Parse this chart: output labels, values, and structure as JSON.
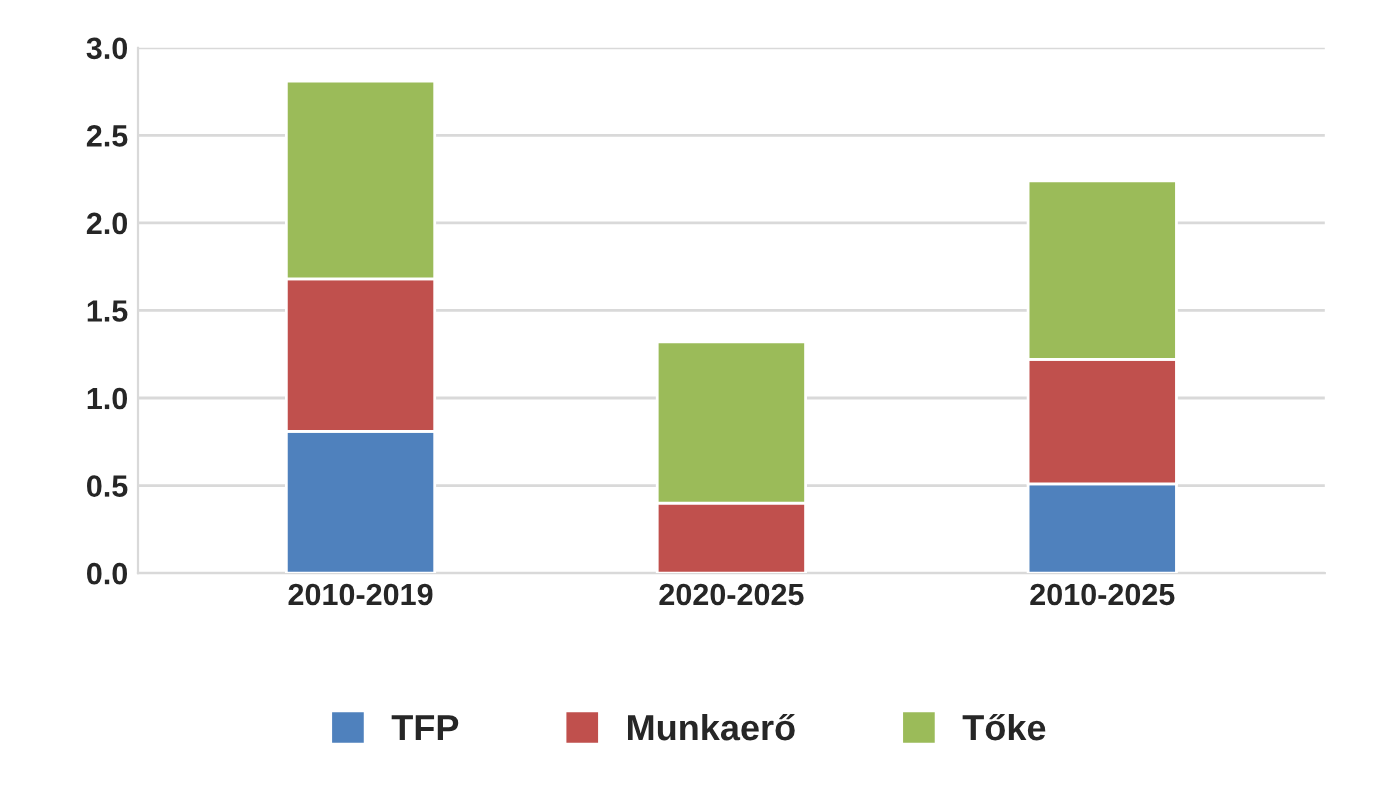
{
  "chart_data": {
    "type": "bar",
    "stacked": true,
    "categories": [
      "2010-2019",
      "2020-2025",
      "2010-2025"
    ],
    "series": [
      {
        "name": "TFP",
        "color": "#4f81bd",
        "values": [
          0.81,
          0.0,
          0.51
        ]
      },
      {
        "name": "Munkaerő",
        "color": "#c0504d",
        "values": [
          0.87,
          0.4,
          0.71
        ]
      },
      {
        "name": "Tőke",
        "color": "#9bbb59",
        "values": [
          1.13,
          0.92,
          1.02
        ]
      }
    ],
    "ylim": [
      0,
      3.0
    ],
    "yticks": [
      {
        "value": 0,
        "label": "0.0"
      },
      {
        "value": 0.5,
        "label": "0.5"
      },
      {
        "value": 1.0,
        "label": "1.0"
      },
      {
        "value": 1.5,
        "label": "1.5"
      },
      {
        "value": 2.0,
        "label": "2.0"
      },
      {
        "value": 2.5,
        "label": "2.5"
      },
      {
        "value": 3.0,
        "label": "3.0"
      }
    ],
    "grid": "y",
    "legend": "bottom"
  }
}
